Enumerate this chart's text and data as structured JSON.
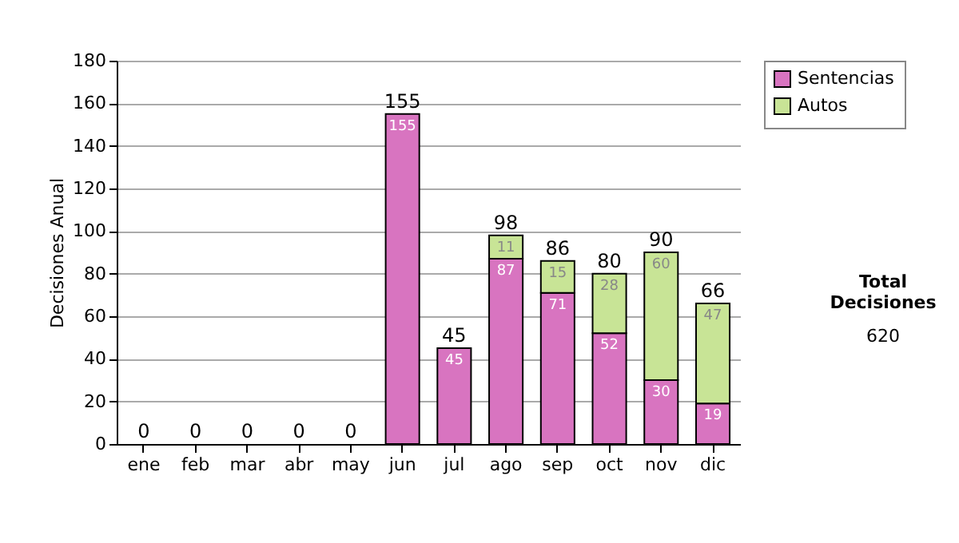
{
  "chart_data": {
    "type": "bar",
    "stacked": true,
    "ylabel": "Decisiones Anual",
    "categories": [
      "ene",
      "feb",
      "mar",
      "abr",
      "may",
      "jun",
      "jul",
      "ago",
      "sep",
      "oct",
      "nov",
      "dic"
    ],
    "series": [
      {
        "name": "Sentencias",
        "color": "#d874c0",
        "values": [
          0,
          0,
          0,
          0,
          0,
          155,
          45,
          87,
          71,
          52,
          30,
          19
        ],
        "value_labels": [
          null,
          null,
          null,
          null,
          null,
          "155",
          "45",
          "87",
          "71",
          "52",
          "30",
          "19"
        ]
      },
      {
        "name": "Autos",
        "color": "#c8e496",
        "values": [
          0,
          0,
          0,
          0,
          0,
          0,
          0,
          11,
          15,
          28,
          60,
          47
        ],
        "value_labels": [
          null,
          null,
          null,
          null,
          null,
          null,
          null,
          "11",
          "15",
          "28",
          "60",
          "47"
        ]
      }
    ],
    "totals": [
      "0",
      "0",
      "0",
      "0",
      "0",
      "155",
      "45",
      "98",
      "86",
      "80",
      "90",
      "66"
    ],
    "ylim": [
      0,
      180
    ],
    "yticks": [
      0,
      20,
      40,
      60,
      80,
      100,
      120,
      140,
      160,
      180
    ],
    "grid": "y",
    "legend": "right",
    "annotations": [
      "Total Decisiones",
      "620"
    ]
  }
}
